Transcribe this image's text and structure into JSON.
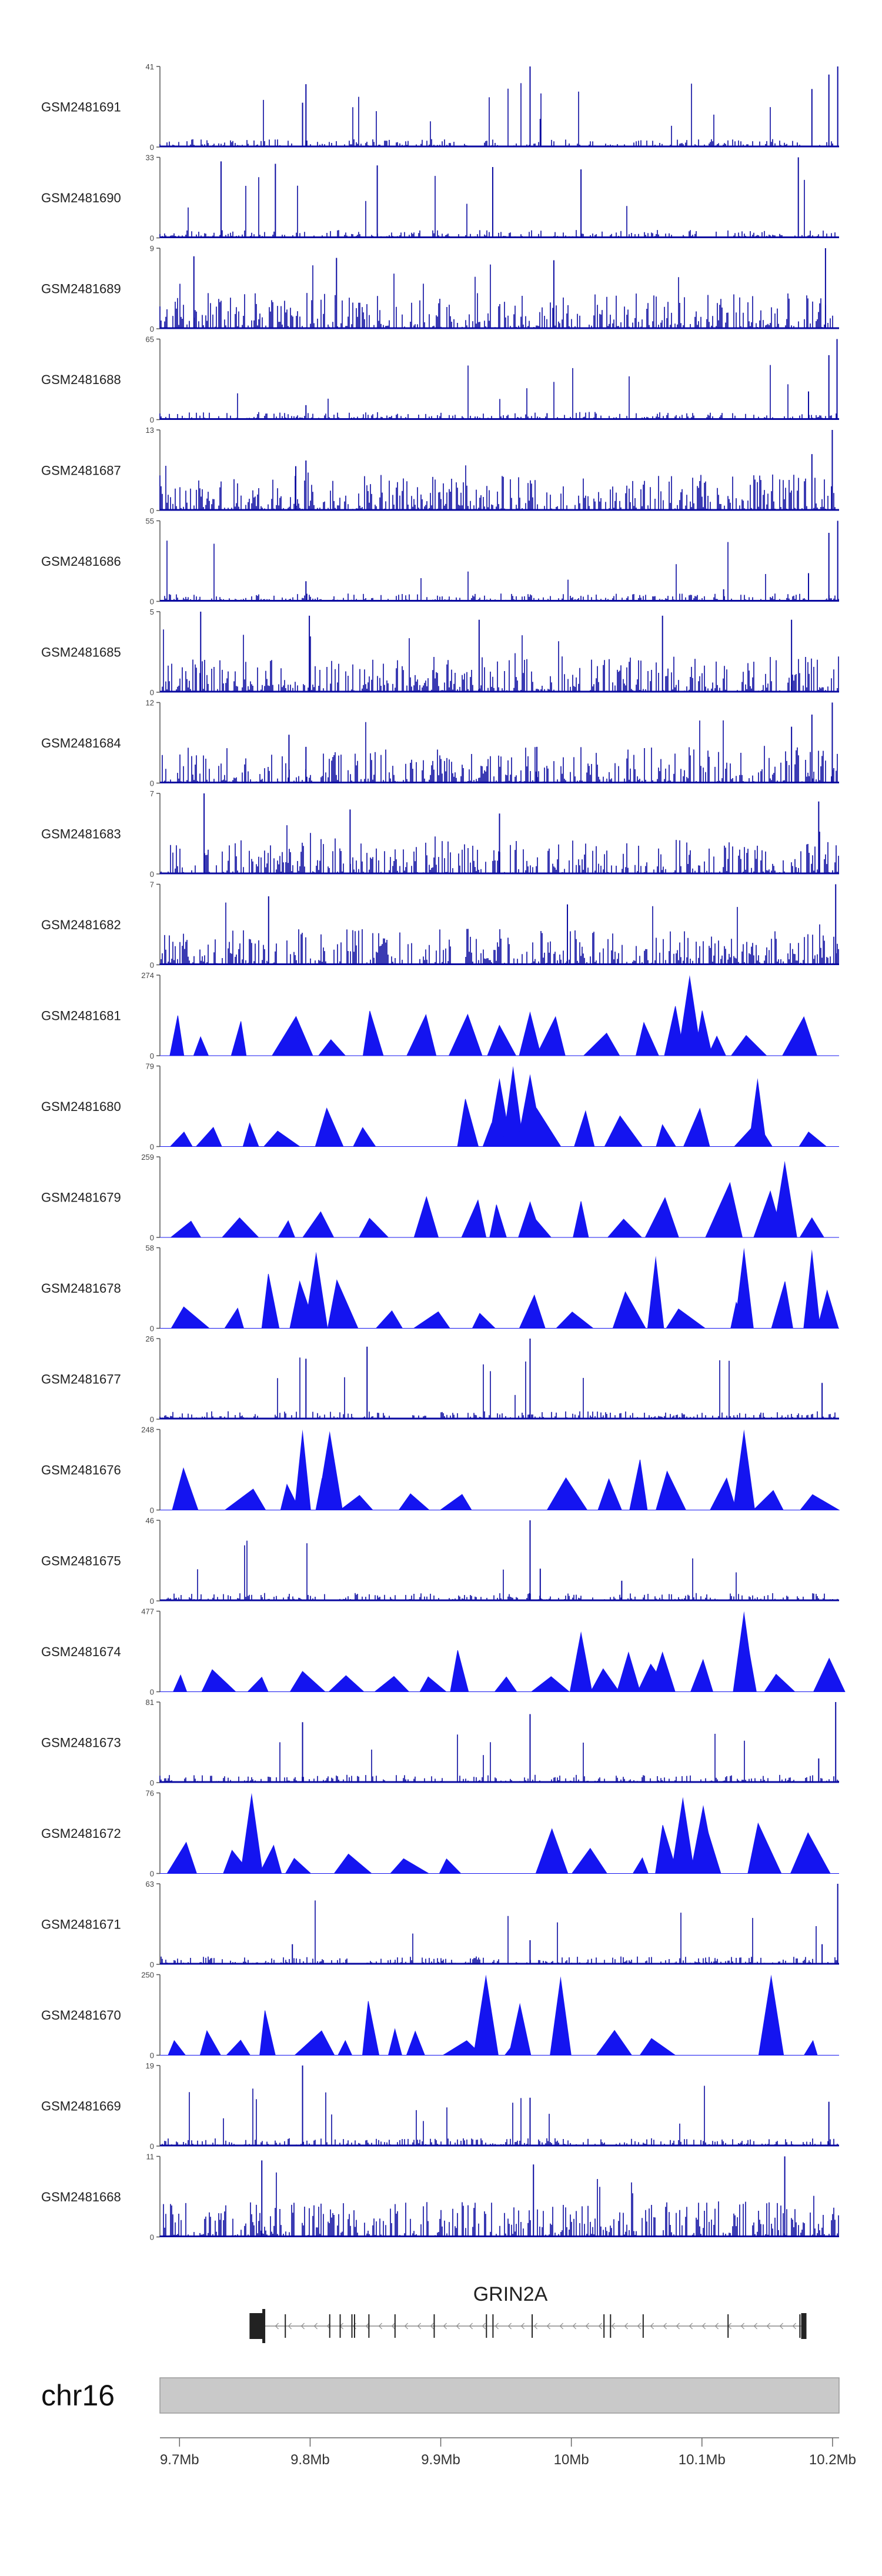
{
  "chart_data": {
    "type": "genome-tracks",
    "colors": {
      "coverage": "#0a0aa0",
      "peaks": "#1414f0",
      "ideogram": "#c9c9c9",
      "gene": "#222222"
    },
    "tracks": [
      {
        "name": "GSM2481691",
        "style": "coverage",
        "ymax": 41,
        "ymin": 0,
        "peaks": [
          {
            "x": 0.215,
            "v": 0.78
          },
          {
            "x": 0.21,
            "v": 0.55
          },
          {
            "x": 0.545,
            "v": 1.0
          },
          {
            "x": 0.56,
            "v": 0.35
          },
          {
            "x": 0.96,
            "v": 0.72
          },
          {
            "x": 0.985,
            "v": 0.9
          },
          {
            "x": 0.998,
            "v": 1.0
          }
        ]
      },
      {
        "name": "GSM2481690",
        "style": "coverage",
        "ymax": 33,
        "ymin": 0,
        "peaks": [
          {
            "x": 0.09,
            "v": 0.95
          },
          {
            "x": 0.17,
            "v": 0.92
          },
          {
            "x": 0.32,
            "v": 0.9
          },
          {
            "x": 0.49,
            "v": 0.88
          },
          {
            "x": 0.62,
            "v": 0.85
          },
          {
            "x": 0.94,
            "v": 1.0
          }
        ]
      },
      {
        "name": "GSM2481689",
        "style": "coverage",
        "ymax": 9,
        "ymin": 0,
        "peaks": [
          {
            "x": 0.05,
            "v": 0.9
          },
          {
            "x": 0.26,
            "v": 0.88
          },
          {
            "x": 0.58,
            "v": 0.85
          },
          {
            "x": 0.98,
            "v": 1.0
          }
        ]
      },
      {
        "name": "GSM2481688",
        "style": "coverage",
        "ymax": 65,
        "ymin": 0,
        "peaks": [
          {
            "x": 0.215,
            "v": 0.18
          },
          {
            "x": 0.57,
            "v": 0.08
          },
          {
            "x": 0.955,
            "v": 0.35
          },
          {
            "x": 0.985,
            "v": 0.8
          },
          {
            "x": 0.997,
            "v": 1.0
          }
        ]
      },
      {
        "name": "GSM2481687",
        "style": "coverage",
        "ymax": 13,
        "ymin": 0,
        "peaks": [
          {
            "x": 0.2,
            "v": 0.55
          },
          {
            "x": 0.215,
            "v": 0.62
          },
          {
            "x": 0.96,
            "v": 0.7
          },
          {
            "x": 0.99,
            "v": 1.0
          }
        ]
      },
      {
        "name": "GSM2481686",
        "style": "coverage",
        "ymax": 55,
        "ymin": 0,
        "peaks": [
          {
            "x": 0.215,
            "v": 0.25
          },
          {
            "x": 0.83,
            "v": 0.15
          },
          {
            "x": 0.955,
            "v": 0.35
          },
          {
            "x": 0.985,
            "v": 0.85
          },
          {
            "x": 0.998,
            "v": 1.0
          }
        ]
      },
      {
        "name": "GSM2481685",
        "style": "coverage",
        "ymax": 5,
        "ymin": 0,
        "peaks": [
          {
            "x": 0.06,
            "v": 1.0
          },
          {
            "x": 0.22,
            "v": 0.95
          },
          {
            "x": 0.47,
            "v": 0.9
          },
          {
            "x": 0.74,
            "v": 0.95
          },
          {
            "x": 0.93,
            "v": 0.9
          }
        ]
      },
      {
        "name": "GSM2481684",
        "style": "coverage",
        "ymax": 12,
        "ymin": 0,
        "peaks": [
          {
            "x": 0.19,
            "v": 0.6
          },
          {
            "x": 0.215,
            "v": 0.45
          },
          {
            "x": 0.555,
            "v": 0.45
          },
          {
            "x": 0.93,
            "v": 0.7
          },
          {
            "x": 0.96,
            "v": 0.85
          },
          {
            "x": 0.99,
            "v": 1.0
          }
        ]
      },
      {
        "name": "GSM2481683",
        "style": "coverage",
        "ymax": 7,
        "ymin": 0,
        "peaks": [
          {
            "x": 0.065,
            "v": 1.0
          },
          {
            "x": 0.28,
            "v": 0.8
          },
          {
            "x": 0.5,
            "v": 0.75
          },
          {
            "x": 0.97,
            "v": 0.9
          }
        ]
      },
      {
        "name": "GSM2481682",
        "style": "coverage",
        "ymax": 7,
        "ymin": 0,
        "peaks": [
          {
            "x": 0.16,
            "v": 0.85
          },
          {
            "x": 0.6,
            "v": 0.75
          },
          {
            "x": 0.995,
            "v": 1.0
          }
        ]
      },
      {
        "name": "GSM2481681",
        "style": "peaks",
        "ymax": 274,
        "ymin": 0,
        "peaks": [
          {
            "x": 0.195,
            "v": 0.38
          },
          {
            "x": 0.545,
            "v": 0.55
          },
          {
            "x": 0.78,
            "v": 1.0
          },
          {
            "x": 0.82,
            "v": 0.25
          }
        ]
      },
      {
        "name": "GSM2481680",
        "style": "peaks",
        "ymax": 79,
        "ymin": 0,
        "peaks": [
          {
            "x": 0.5,
            "v": 0.85
          },
          {
            "x": 0.52,
            "v": 1.0
          },
          {
            "x": 0.545,
            "v": 0.9
          },
          {
            "x": 0.88,
            "v": 0.85
          }
        ]
      },
      {
        "name": "GSM2481679",
        "style": "peaks",
        "ymax": 259,
        "ymin": 0,
        "peaks": [
          {
            "x": 0.545,
            "v": 0.45
          },
          {
            "x": 0.92,
            "v": 0.95
          },
          {
            "x": 0.96,
            "v": 0.25
          }
        ]
      },
      {
        "name": "GSM2481678",
        "style": "peaks",
        "ymax": 58,
        "ymin": 0,
        "peaks": [
          {
            "x": 0.23,
            "v": 0.95
          },
          {
            "x": 0.73,
            "v": 0.9
          },
          {
            "x": 0.86,
            "v": 1.0
          },
          {
            "x": 0.96,
            "v": 0.98
          }
        ]
      },
      {
        "name": "GSM2481677",
        "style": "coverage",
        "ymax": 26,
        "ymin": 0,
        "peaks": [
          {
            "x": 0.215,
            "v": 0.75
          },
          {
            "x": 0.305,
            "v": 0.9
          },
          {
            "x": 0.545,
            "v": 1.0
          },
          {
            "x": 0.975,
            "v": 0.45
          }
        ]
      },
      {
        "name": "GSM2481676",
        "style": "peaks",
        "ymax": 248,
        "ymin": 0,
        "peaks": [
          {
            "x": 0.21,
            "v": 1.0
          },
          {
            "x": 0.25,
            "v": 0.98
          },
          {
            "x": 0.86,
            "v": 1.0
          }
        ]
      },
      {
        "name": "GSM2481675",
        "style": "coverage",
        "ymax": 46,
        "ymin": 0,
        "peaks": [
          {
            "x": 0.545,
            "v": 1.0
          },
          {
            "x": 0.56,
            "v": 0.4
          },
          {
            "x": 0.68,
            "v": 0.25
          }
        ]
      },
      {
        "name": "GSM2481674",
        "style": "peaks",
        "ymax": 477,
        "ymin": 0,
        "peaks": [
          {
            "x": 0.62,
            "v": 0.75
          },
          {
            "x": 0.86,
            "v": 1.0
          },
          {
            "x": 0.69,
            "v": 0.5
          },
          {
            "x": 0.74,
            "v": 0.5
          }
        ]
      },
      {
        "name": "GSM2481673",
        "style": "coverage",
        "ymax": 81,
        "ymin": 0,
        "peaks": [
          {
            "x": 0.21,
            "v": 0.75
          },
          {
            "x": 0.545,
            "v": 0.85
          },
          {
            "x": 0.97,
            "v": 0.3
          },
          {
            "x": 0.995,
            "v": 1.0
          }
        ]
      },
      {
        "name": "GSM2481672",
        "style": "peaks",
        "ymax": 76,
        "ymin": 0,
        "peaks": [
          {
            "x": 0.135,
            "v": 1.0
          },
          {
            "x": 0.77,
            "v": 0.95
          },
          {
            "x": 0.8,
            "v": 0.85
          }
        ]
      },
      {
        "name": "GSM2481671",
        "style": "coverage",
        "ymax": 63,
        "ymin": 0,
        "peaks": [
          {
            "x": 0.195,
            "v": 0.25
          },
          {
            "x": 0.545,
            "v": 0.3
          },
          {
            "x": 0.975,
            "v": 0.25
          },
          {
            "x": 0.998,
            "v": 1.0
          }
        ]
      },
      {
        "name": "GSM2481670",
        "style": "peaks",
        "ymax": 250,
        "ymin": 0,
        "peaks": [
          {
            "x": 0.48,
            "v": 1.0
          },
          {
            "x": 0.59,
            "v": 0.98
          },
          {
            "x": 0.53,
            "v": 0.65
          },
          {
            "x": 0.9,
            "v": 1.0
          }
        ]
      },
      {
        "name": "GSM2481669",
        "style": "coverage",
        "ymax": 19,
        "ymin": 0,
        "peaks": [
          {
            "x": 0.21,
            "v": 1.0
          },
          {
            "x": 0.545,
            "v": 0.6
          },
          {
            "x": 0.985,
            "v": 0.55
          }
        ]
      },
      {
        "name": "GSM2481668",
        "style": "coverage",
        "ymax": 11,
        "ymin": 0,
        "peaks": [
          {
            "x": 0.15,
            "v": 0.95
          },
          {
            "x": 0.55,
            "v": 0.9
          },
          {
            "x": 0.92,
            "v": 1.0
          }
        ]
      }
    ],
    "gene": {
      "name": "GRIN2A",
      "strand": "-",
      "start_mb": 9.7645,
      "end_mb": 10.1782,
      "exons_mb": [
        9.759,
        9.7645,
        9.781,
        9.815,
        9.823,
        9.832,
        9.834,
        9.845,
        9.865,
        9.895,
        9.935,
        9.94,
        9.97,
        10.025,
        10.03,
        10.055,
        10.12,
        10.175,
        10.178
      ]
    },
    "chromosome": "chr16",
    "x_axis": {
      "min_mb": 9.685,
      "max_mb": 10.205,
      "ticks_mb": [
        9.7,
        9.8,
        9.9,
        10.0,
        10.1,
        10.2
      ],
      "tick_labels": [
        "9.7Mb",
        "9.8Mb",
        "9.9Mb",
        "10Mb",
        "10.1Mb",
        "10.2Mb"
      ]
    }
  }
}
